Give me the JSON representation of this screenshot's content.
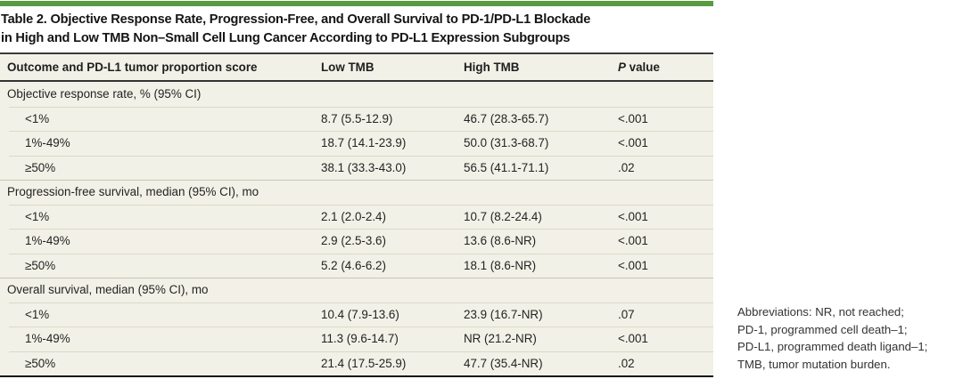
{
  "colors": {
    "accent_green": "#5a9b40",
    "table_background": "#f2f1e7",
    "dark_rule": "#3a3a3a",
    "row_separator": "#dbd9c8",
    "section_separator": "#c8c6b5",
    "text": "#1e1e1e",
    "footnote_text": "#333333"
  },
  "table_title": {
    "line1": "Table 2. Objective Response Rate, Progression-Free, and Overall Survival to PD-1/PD-L1 Blockade",
    "line2": "in High and Low TMB Non–Small Cell Lung Cancer According to PD-L1 Expression Subgroups"
  },
  "table": {
    "header": {
      "outcome": "Outcome and PD-L1 tumor proportion score",
      "low_tmb": "Low TMB",
      "high_tmb": "High TMB",
      "p_italic": "P",
      "p_rest": " value"
    },
    "sections": [
      {
        "label": "Objective response rate, % (95% CI)",
        "rows": [
          {
            "label": "<1%",
            "low_tmb": "8.7 (5.5-12.9)",
            "high_tmb": "46.7 (28.3-65.7)",
            "p_value": "<.001"
          },
          {
            "label": "1%-49%",
            "low_tmb": "18.7 (14.1-23.9)",
            "high_tmb": "50.0 (31.3-68.7)",
            "p_value": "<.001"
          },
          {
            "label": "≥50%",
            "low_tmb": "38.1 (33.3-43.0)",
            "high_tmb": "56.5 (41.1-71.1)",
            "p_value": ".02"
          }
        ]
      },
      {
        "label": "Progression-free survival, median (95% CI), mo",
        "rows": [
          {
            "label": "<1%",
            "low_tmb": "2.1 (2.0-2.4)",
            "high_tmb": "10.7 (8.2-24.4)",
            "p_value": "<.001"
          },
          {
            "label": "1%-49%",
            "low_tmb": "2.9 (2.5-3.6)",
            "high_tmb": "13.6 (8.6-NR)",
            "p_value": "<.001"
          },
          {
            "label": "≥50%",
            "low_tmb": "5.2 (4.6-6.2)",
            "high_tmb": "18.1 (8.6-NR)",
            "p_value": "<.001"
          }
        ]
      },
      {
        "label": "Overall survival, median (95% CI), mo",
        "rows": [
          {
            "label": "<1%",
            "low_tmb": "10.4 (7.9-13.6)",
            "high_tmb": "23.9 (16.7-NR)",
            "p_value": ".07"
          },
          {
            "label": "1%-49%",
            "low_tmb": "11.3 (9.6-14.7)",
            "high_tmb": "NR (21.2-NR)",
            "p_value": "<.001"
          },
          {
            "label": "≥50%",
            "low_tmb": "21.4 (17.5-25.9)",
            "high_tmb": "47.7 (35.4-NR)",
            "p_value": ".02"
          }
        ]
      }
    ]
  },
  "footnote": {
    "lines": [
      "Abbreviations: NR, not reached;",
      "PD-1, programmed cell death–1;",
      "PD-L1, programmed death ligand–1;",
      "TMB, tumor mutation burden."
    ]
  }
}
